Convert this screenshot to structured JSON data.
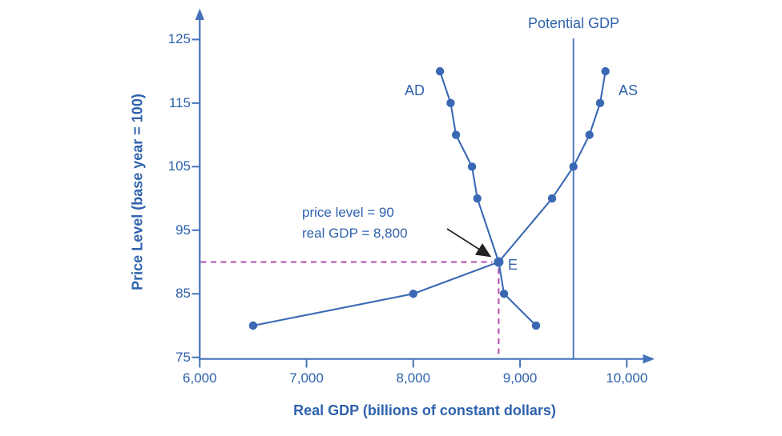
{
  "page": {
    "background": "#ffffff"
  },
  "colors": {
    "curve_blue": "#3a68b4",
    "axis_blue": "#4472b8",
    "label_blue": "#2f62ad",
    "guide_magenta": "#b04cab",
    "annotation_arrow_black": "#222222"
  },
  "chart_data": {
    "type": "line",
    "title": "",
    "xlabel": "Real GDP (billions of constant dollars)",
    "ylabel": "Price Level (base year = 100)",
    "xlim": [
      6000,
      10300
    ],
    "ylim": [
      75,
      128
    ],
    "grid": false,
    "x_ticks": [
      6000,
      7000,
      8000,
      9000,
      10000
    ],
    "x_tick_labels": [
      "6,000",
      "7,000",
      "8,000",
      "9,000",
      "10,000"
    ],
    "y_ticks": [
      125,
      115,
      105,
      95,
      85,
      75
    ],
    "y_tick_labels": [
      "125",
      "115",
      "105",
      "95",
      "85",
      "75"
    ],
    "series": [
      {
        "name": "AD",
        "label": "AD",
        "points_gdp_price": [
          [
            8250,
            120
          ],
          [
            8350,
            115
          ],
          [
            8400,
            110
          ],
          [
            8550,
            105
          ],
          [
            8600,
            100
          ],
          [
            8800,
            90
          ],
          [
            8850,
            85
          ],
          [
            9150,
            80
          ]
        ]
      },
      {
        "name": "AS",
        "label": "AS",
        "points_gdp_price": [
          [
            6500,
            80
          ],
          [
            8000,
            85
          ],
          [
            8800,
            90
          ],
          [
            9300,
            100
          ],
          [
            9500,
            105
          ],
          [
            9650,
            110
          ],
          [
            9750,
            115
          ],
          [
            9800,
            120
          ]
        ]
      }
    ],
    "potential_gdp": {
      "label": "Potential GDP",
      "gdp": 9500
    },
    "equilibrium": {
      "label": "E",
      "price_level": 90,
      "real_gdp": 8800
    },
    "annotation": {
      "line1": "price level = 90",
      "line2": "real GDP = 8,800"
    }
  }
}
